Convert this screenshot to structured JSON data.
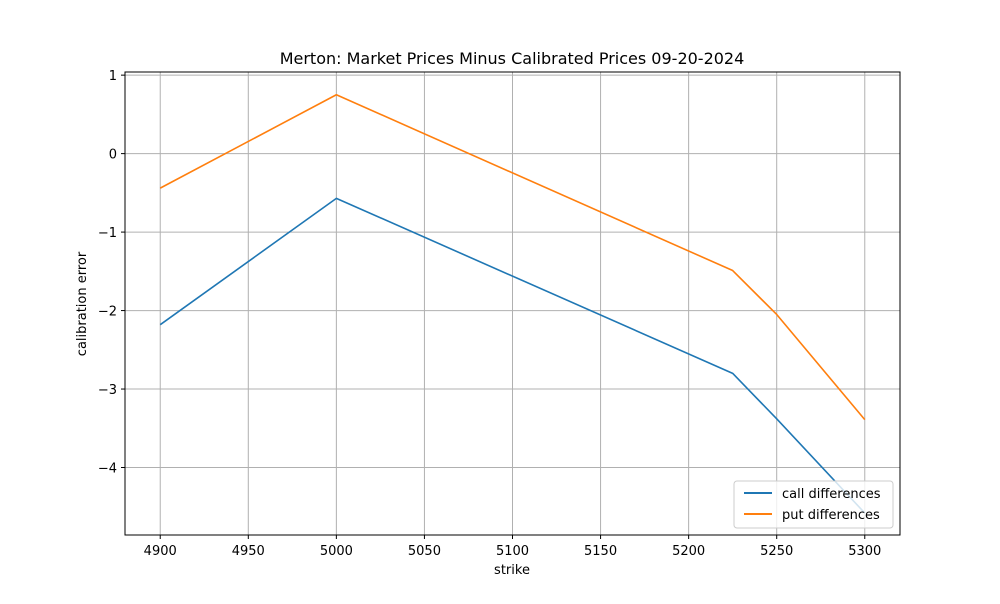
{
  "chart_data": {
    "type": "line",
    "title": "Merton: Market Prices Minus Calibrated Prices 09-20-2024",
    "xlabel": "strike",
    "ylabel": "calibration error",
    "x": [
      4900,
      5000,
      5225,
      5250,
      5300
    ],
    "series": [
      {
        "name": "call differences",
        "color": "#1f77b4",
        "values": [
          -2.18,
          -0.57,
          -2.8,
          -3.38,
          -4.58
        ]
      },
      {
        "name": "put differences",
        "color": "#ff7f0e",
        "values": [
          -0.44,
          0.75,
          -1.49,
          -2.05,
          -3.39
        ]
      }
    ],
    "xlim": [
      4880,
      5320
    ],
    "ylim": [
      -4.86,
      1.04
    ],
    "xticks": [
      4900,
      4950,
      5000,
      5050,
      5100,
      5150,
      5200,
      5250,
      5300
    ],
    "xtick_labels": [
      "4900",
      "4950",
      "5000",
      "5050",
      "5100",
      "5150",
      "5200",
      "5250",
      "5300"
    ],
    "yticks": [
      1,
      0,
      -1,
      -2,
      -3,
      -4
    ],
    "ytick_labels": [
      "1",
      "0",
      "−1",
      "−2",
      "−3",
      "−4"
    ],
    "grid": true,
    "legend_position": "bottom-right"
  }
}
